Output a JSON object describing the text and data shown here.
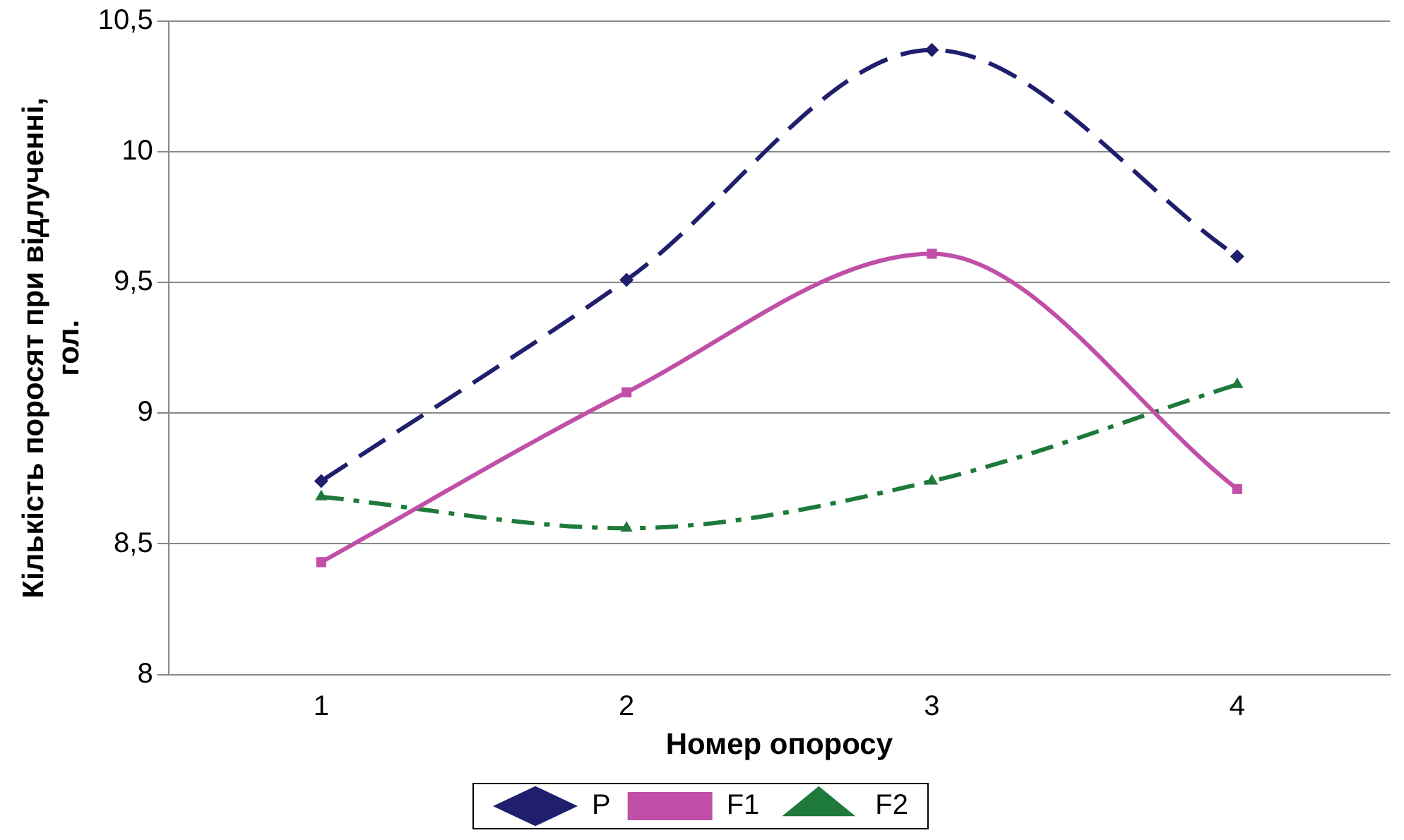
{
  "chart_data": {
    "type": "line",
    "xlabel": "Номер опоросу",
    "ylabel": "Кількість поросят при відлученні, гол.",
    "categories": [
      "1",
      "2",
      "3",
      "4"
    ],
    "series": [
      {
        "name": "P",
        "color": "#1f1f6e",
        "values": [
          8.74,
          9.51,
          10.39,
          9.6
        ],
        "marker": "diamond",
        "line_style": "dashed"
      },
      {
        "name": "F1",
        "color": "#c04fa8",
        "values": [
          8.43,
          9.08,
          9.61,
          8.71
        ],
        "marker": "square",
        "line_style": "solid"
      },
      {
        "name": "F2",
        "color": "#1e7a3a",
        "values": [
          8.68,
          8.56,
          8.74,
          9.11
        ],
        "marker": "triangle",
        "line_style": "dashdot"
      }
    ],
    "ylim": [
      8,
      10.5
    ],
    "yticks": [
      8,
      {
        "value": 8.5,
        "label": "8,5"
      },
      9,
      {
        "value": 9.5,
        "label": "9,5"
      },
      10,
      {
        "value": 10.5,
        "label": "10,5"
      }
    ],
    "grid": "y",
    "legend": "bottom"
  }
}
